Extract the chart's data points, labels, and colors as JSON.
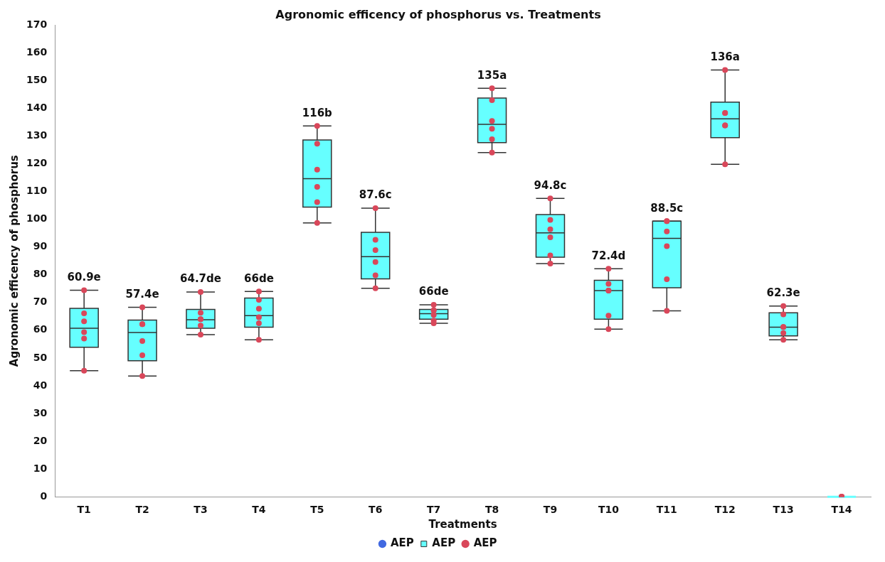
{
  "chart_data": {
    "type": "box",
    "title": "Agronomic efficency of phosphorus vs. Treatments",
    "xlabel": "Treatments",
    "ylabel": "Agronomic efficency of phosphorus",
    "categories": [
      "T1",
      "T2",
      "T3",
      "T4",
      "T5",
      "T6",
      "T7",
      "T8",
      "T9",
      "T10",
      "T11",
      "T12",
      "T13",
      "T14"
    ],
    "ylim": [
      0,
      170
    ],
    "yticks": [
      0,
      10,
      20,
      30,
      40,
      50,
      60,
      70,
      80,
      90,
      100,
      110,
      120,
      130,
      140,
      150,
      160,
      170
    ],
    "grid": false,
    "legend": "bottom",
    "series": [
      {
        "name": "AEP",
        "type": "scatter",
        "color": "#4169e1",
        "x": [
          "T1",
          "T2",
          "T3",
          "T4",
          "T5",
          "T6",
          "T7",
          "T8",
          "T9",
          "T10",
          "T11",
          "T12",
          "T13",
          "T14"
        ],
        "values": [
          null,
          null,
          null,
          null,
          null,
          null,
          null,
          null,
          null,
          null,
          null,
          null,
          null,
          null
        ]
      },
      {
        "name": "AEP",
        "type": "box",
        "color": "#66ffff",
        "boxes": [
          {
            "low": 45.4,
            "q1": 53.9,
            "median": 60.7,
            "q3": 67.9,
            "high": 74.4
          },
          {
            "low": 43.5,
            "q1": 49.0,
            "median": 59.2,
            "q3": 63.7,
            "high": 68.3
          },
          {
            "low": 58.4,
            "q1": 60.7,
            "median": 63.8,
            "q3": 67.5,
            "high": 73.8
          },
          {
            "low": 56.6,
            "q1": 61.1,
            "median": 65.3,
            "q3": 71.6,
            "high": 74.0
          },
          {
            "low": 98.7,
            "q1": 104.4,
            "median": 114.6,
            "q3": 128.6,
            "high": 133.6
          },
          {
            "low": 75.1,
            "q1": 78.5,
            "median": 86.5,
            "q3": 95.3,
            "high": 104.0
          },
          {
            "low": 62.5,
            "q1": 64.0,
            "median": 66.0,
            "q3": 67.5,
            "high": 69.2
          },
          {
            "low": 124.0,
            "q1": 127.6,
            "median": 134.2,
            "q3": 143.7,
            "high": 147.2
          },
          {
            "low": 84.0,
            "q1": 86.3,
            "median": 95.1,
            "q3": 101.7,
            "high": 107.5
          },
          {
            "low": 60.4,
            "q1": 64.0,
            "median": 74.3,
            "q3": 78.0,
            "high": 82.2
          },
          {
            "low": 67.0,
            "q1": 75.3,
            "median": 93.1,
            "q3": 99.3,
            "high": 99.3
          },
          {
            "low": 119.8,
            "q1": 129.4,
            "median": 136.2,
            "q3": 142.2,
            "high": 153.8
          },
          {
            "low": 56.6,
            "q1": 58.0,
            "median": 61.1,
            "q3": 66.3,
            "high": 68.7
          },
          {
            "low": 0,
            "q1": 0,
            "median": 0,
            "q3": 0,
            "high": 0
          }
        ]
      },
      {
        "name": "AEP",
        "type": "scatter",
        "color": "#d9475a",
        "x": [
          "T1",
          "T1",
          "T1",
          "T1",
          "T1",
          "T1",
          "T2",
          "T2",
          "T2",
          "T2",
          "T2",
          "T2",
          "T3",
          "T3",
          "T3",
          "T3",
          "T3",
          "T3",
          "T4",
          "T4",
          "T4",
          "T4",
          "T4",
          "T4",
          "T5",
          "T5",
          "T5",
          "T5",
          "T5",
          "T5",
          "T6",
          "T6",
          "T6",
          "T6",
          "T6",
          "T6",
          "T7",
          "T7",
          "T7",
          "T7",
          "T7",
          "T7",
          "T8",
          "T8",
          "T8",
          "T8",
          "T8",
          "T8",
          "T9",
          "T9",
          "T9",
          "T9",
          "T9",
          "T9",
          "T10",
          "T10",
          "T10",
          "T10",
          "T10",
          "T10",
          "T11",
          "T11",
          "T11",
          "T11",
          "T11",
          "T11",
          "T12",
          "T12",
          "T12",
          "T12",
          "T12",
          "T12",
          "T13",
          "T13",
          "T13",
          "T13",
          "T13",
          "T13",
          "T14",
          "T14",
          "T14",
          "T14",
          "T14",
          "T14"
        ],
        "values": [
          74.4,
          66.1,
          63.2,
          59.3,
          57.0,
          45.4,
          68.3,
          62.2,
          62.2,
          56.1,
          51.0,
          43.5,
          73.8,
          66.3,
          64.0,
          64.0,
          61.7,
          58.4,
          74.0,
          71.0,
          67.8,
          64.7,
          62.5,
          56.6,
          133.6,
          127.2,
          117.9,
          111.7,
          106.2,
          98.7,
          104.0,
          92.6,
          88.9,
          84.6,
          79.8,
          75.1,
          69.2,
          67.2,
          67.2,
          65.5,
          63.5,
          62.5,
          147.2,
          142.9,
          135.4,
          132.6,
          128.8,
          124.0,
          107.5,
          99.8,
          96.4,
          93.5,
          87.0,
          84.0,
          82.2,
          76.7,
          74.3,
          74.3,
          65.3,
          60.4,
          99.3,
          99.3,
          95.6,
          90.3,
          78.4,
          67.0,
          153.8,
          138.3,
          138.3,
          133.8,
          133.8,
          119.8,
          68.7,
          65.7,
          61.2,
          61.2,
          59.0,
          56.6,
          0,
          0,
          0,
          0,
          0,
          0
        ]
      }
    ],
    "annotations": [
      {
        "text": "60.9e",
        "x": "T1",
        "y": 74.4
      },
      {
        "text": "57.4e",
        "x": "T2",
        "y": 68.3
      },
      {
        "text": "64.7de",
        "x": "T3",
        "y": 73.8
      },
      {
        "text": "66de",
        "x": "T4",
        "y": 74.0
      },
      {
        "text": "116b",
        "x": "T5",
        "y": 133.6
      },
      {
        "text": "87.6c",
        "x": "T6",
        "y": 104.0
      },
      {
        "text": "66de",
        "x": "T7",
        "y": 69.2
      },
      {
        "text": "135a",
        "x": "T8",
        "y": 147.2
      },
      {
        "text": "94.8c",
        "x": "T9",
        "y": 107.5
      },
      {
        "text": "72.4d",
        "x": "T10",
        "y": 82.2
      },
      {
        "text": "88.5c",
        "x": "T11",
        "y": 99.3
      },
      {
        "text": "136a",
        "x": "T12",
        "y": 153.8
      },
      {
        "text": "62.3e",
        "x": "T13",
        "y": 68.7
      }
    ]
  }
}
